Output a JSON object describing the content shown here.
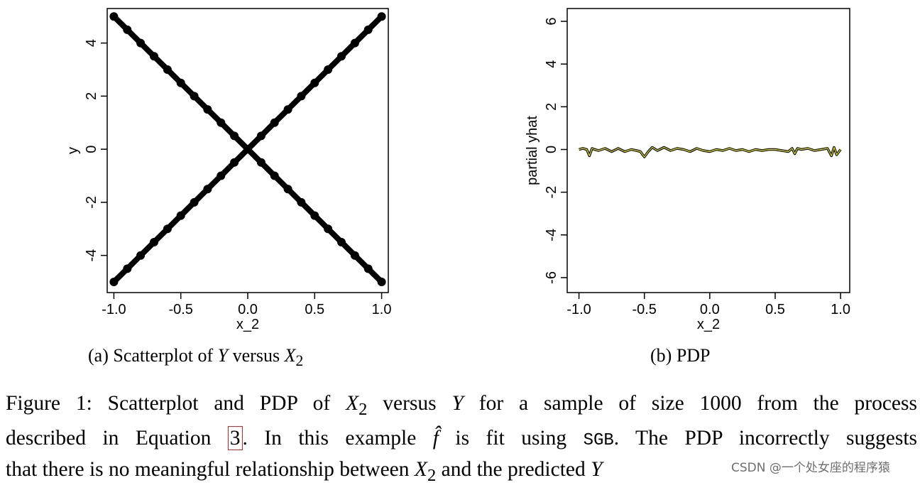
{
  "chart_data": [
    {
      "type": "scatter",
      "panel_label": "(a) Scatterplot of",
      "panel_var_y": "Y",
      "panel_versus": "versus",
      "panel_var_x": "X",
      "panel_var_x_sub": "2",
      "xlabel": "x_2",
      "ylabel": "y",
      "xlim": [
        -1.05,
        1.05
      ],
      "ylim": [
        -5.4,
        5.3
      ],
      "x_ticks": [
        "-1.0",
        "-0.5",
        "0.0",
        "0.5",
        "1.0"
      ],
      "x_tick_values": [
        -1.0,
        -0.5,
        0.0,
        0.5,
        1.0
      ],
      "y_ticks": [
        "-4",
        "-2",
        "0",
        "2",
        "4"
      ],
      "y_tick_values": [
        -4,
        -2,
        0,
        2,
        4
      ],
      "series": [
        {
          "points": [
            [
              -1.0,
              -5.0
            ],
            [
              -0.9,
              -4.5
            ],
            [
              -0.8,
              -4.0
            ],
            [
              -0.7,
              -3.5
            ],
            [
              -0.6,
              -3.0
            ],
            [
              -0.5,
              -2.5
            ],
            [
              -0.4,
              -2.0
            ],
            [
              -0.3,
              -1.5
            ],
            [
              -0.2,
              -1.0
            ],
            [
              -0.1,
              -0.5
            ],
            [
              0.0,
              0.0
            ],
            [
              0.1,
              0.5
            ],
            [
              0.2,
              1.0
            ],
            [
              0.3,
              1.5
            ],
            [
              0.4,
              2.0
            ],
            [
              0.5,
              2.5
            ],
            [
              0.6,
              3.0
            ],
            [
              0.7,
              3.5
            ],
            [
              0.8,
              4.0
            ],
            [
              0.9,
              4.5
            ],
            [
              1.0,
              5.0
            ]
          ]
        },
        {
          "points": [
            [
              -1.0,
              5.0
            ],
            [
              -0.9,
              4.5
            ],
            [
              -0.8,
              4.0
            ],
            [
              -0.7,
              3.5
            ],
            [
              -0.6,
              3.0
            ],
            [
              -0.5,
              2.5
            ],
            [
              -0.4,
              2.0
            ],
            [
              -0.3,
              1.5
            ],
            [
              -0.2,
              1.0
            ],
            [
              -0.1,
              0.5
            ],
            [
              0.0,
              0.0
            ],
            [
              0.1,
              -0.5
            ],
            [
              0.2,
              -1.0
            ],
            [
              0.3,
              -1.5
            ],
            [
              0.4,
              -2.0
            ],
            [
              0.5,
              -2.5
            ],
            [
              0.6,
              -3.0
            ],
            [
              0.7,
              -3.5
            ],
            [
              0.8,
              -4.0
            ],
            [
              0.9,
              -4.5
            ],
            [
              1.0,
              -5.0
            ]
          ]
        }
      ],
      "marker_color": "#000000"
    },
    {
      "type": "line",
      "panel_label": "(b) PDP",
      "xlabel": "x_2",
      "ylabel": "partial yhat",
      "xlim": [
        -1.09,
        1.07
      ],
      "ylim": [
        -6.7,
        6.6
      ],
      "x_ticks": [
        "-1.0",
        "-0.5",
        "0.0",
        "0.5",
        "1.0"
      ],
      "x_tick_values": [
        -1.0,
        -0.5,
        0.0,
        0.5,
        1.0
      ],
      "y_ticks": [
        "-6",
        "-4",
        "-2",
        "0",
        "2",
        "4",
        "6"
      ],
      "y_tick_values": [
        -6,
        -4,
        -2,
        0,
        2,
        4,
        6
      ],
      "series": [
        {
          "x": [
            -1.0,
            -0.97,
            -0.94,
            -0.92,
            -0.9,
            -0.88,
            -0.85,
            -0.8,
            -0.75,
            -0.7,
            -0.65,
            -0.6,
            -0.56,
            -0.53,
            -0.5,
            -0.47,
            -0.44,
            -0.4,
            -0.35,
            -0.3,
            -0.25,
            -0.2,
            -0.15,
            -0.1,
            -0.05,
            0.0,
            0.05,
            0.1,
            0.15,
            0.2,
            0.25,
            0.3,
            0.35,
            0.4,
            0.45,
            0.5,
            0.55,
            0.6,
            0.63,
            0.65,
            0.67,
            0.7,
            0.75,
            0.8,
            0.85,
            0.9,
            0.93,
            0.95,
            0.97,
            1.0
          ],
          "y": [
            0.0,
            0.05,
            0.0,
            -0.3,
            0.05,
            0.0,
            -0.05,
            0.05,
            -0.1,
            0.05,
            -0.1,
            0.0,
            -0.05,
            -0.1,
            -0.35,
            -0.1,
            0.1,
            -0.05,
            0.1,
            -0.05,
            0.05,
            0.0,
            -0.1,
            0.05,
            -0.05,
            -0.1,
            0.0,
            -0.05,
            0.05,
            -0.05,
            0.0,
            -0.1,
            0.0,
            -0.05,
            0.0,
            0.0,
            -0.05,
            -0.1,
            0.05,
            -0.2,
            0.05,
            0.0,
            0.05,
            -0.05,
            0.0,
            0.05,
            -0.3,
            0.1,
            -0.25,
            0.0
          ]
        }
      ],
      "line_color": "#000000",
      "highlight_color": "#e8e800"
    }
  ],
  "captions": {
    "line1": {
      "pre": "Figure 1: Scatterplot and PDP of ",
      "var_x": "X",
      "sub": "2",
      "mid": " versus ",
      "var_y": "Y",
      "post": " for a sample of size 1000 from the process"
    },
    "line2": {
      "pre": "described in Equation ",
      "ref": "3",
      "mid": ". In this example ",
      "fhat": "f̂",
      "mid2": " is fit using ",
      "code": "SGB",
      "post": ". The PDP incorrectly suggests"
    },
    "line3": {
      "pre": "that there is no meaningful relationship between ",
      "var_x": "X",
      "sub": "2",
      "mid": " and the predicted ",
      "var_y": "Y"
    }
  },
  "watermark": "CSDN @一个处女座的程序猿"
}
